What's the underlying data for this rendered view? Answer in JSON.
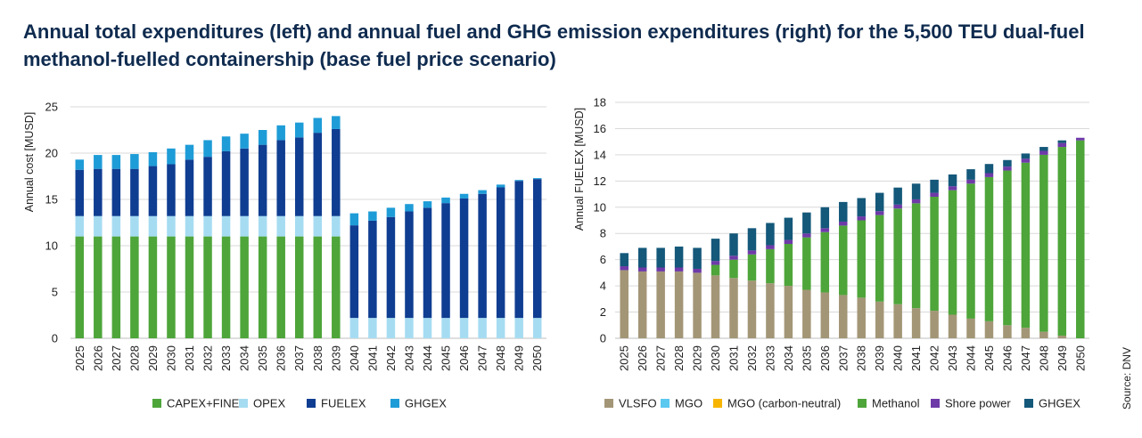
{
  "title": "Annual total expenditures (left) and annual fuel and GHG emission expenditures (right) for the 5,500 TEU dual-fuel methanol-fuelled containership (base fuel price scenario)",
  "source": "Source: DNV",
  "chart_data": [
    {
      "type": "bar",
      "stacked": true,
      "ylabel": "Annual cost [MUSD]",
      "ylim": [
        0,
        25
      ],
      "yticks": [
        0,
        5,
        10,
        15,
        20,
        25
      ],
      "grid": true,
      "legend_position": "bottom",
      "categories": [
        "2025",
        "2026",
        "2027",
        "2028",
        "2029",
        "2030",
        "2031",
        "2032",
        "2033",
        "2034",
        "2035",
        "2036",
        "2037",
        "2038",
        "2039",
        "2040",
        "2041",
        "2042",
        "2043",
        "2044",
        "2045",
        "2046",
        "2047",
        "2048",
        "2049",
        "2050"
      ],
      "series": [
        {
          "name": "CAPEX+FINEX",
          "color": "#4ea53a",
          "values": [
            11,
            11,
            11,
            11,
            11,
            11,
            11,
            11,
            11,
            11,
            11,
            11,
            11,
            11,
            11,
            0,
            0,
            0,
            0,
            0,
            0,
            0,
            0,
            0,
            0,
            0
          ]
        },
        {
          "name": "OPEX",
          "color": "#a6dcf2",
          "values": [
            2.2,
            2.2,
            2.2,
            2.2,
            2.2,
            2.2,
            2.2,
            2.2,
            2.2,
            2.2,
            2.2,
            2.2,
            2.2,
            2.2,
            2.2,
            2.2,
            2.2,
            2.2,
            2.2,
            2.2,
            2.2,
            2.2,
            2.2,
            2.2,
            2.2,
            2.2
          ]
        },
        {
          "name": "FUELEX",
          "color": "#0f3d91",
          "values": [
            5.0,
            5.1,
            5.1,
            5.1,
            5.4,
            5.6,
            6.1,
            6.4,
            7.0,
            7.3,
            7.7,
            8.2,
            8.5,
            9.0,
            9.4,
            10.0,
            10.5,
            10.9,
            11.5,
            11.9,
            12.4,
            12.9,
            13.4,
            14.1,
            14.8,
            15.0
          ]
        },
        {
          "name": "GHGEX",
          "color": "#1e9cd7",
          "values": [
            1.1,
            1.5,
            1.5,
            1.6,
            1.5,
            1.7,
            1.6,
            1.8,
            1.6,
            1.6,
            1.6,
            1.6,
            1.6,
            1.6,
            1.4,
            1.3,
            1.0,
            1.0,
            0.8,
            0.7,
            0.6,
            0.5,
            0.4,
            0.3,
            0.1,
            0.1
          ]
        }
      ]
    },
    {
      "type": "bar",
      "stacked": true,
      "ylabel": "Annual FUELEX [MUSD]",
      "ylim": [
        0,
        18
      ],
      "yticks": [
        0,
        2,
        4,
        6,
        8,
        10,
        12,
        14,
        16,
        18
      ],
      "grid": true,
      "legend_position": "bottom",
      "categories": [
        "2025",
        "2026",
        "2027",
        "2028",
        "2029",
        "2030",
        "2031",
        "2032",
        "2033",
        "2034",
        "2035",
        "2036",
        "2037",
        "2038",
        "2039",
        "2040",
        "2041",
        "2042",
        "2043",
        "2044",
        "2045",
        "2046",
        "2047",
        "2048",
        "2049",
        "2050"
      ],
      "series": [
        {
          "name": "VLSFO",
          "color": "#a39677",
          "values": [
            5.2,
            5.1,
            5.1,
            5.1,
            5.0,
            4.8,
            4.6,
            4.4,
            4.2,
            4.0,
            3.7,
            3.5,
            3.3,
            3.1,
            2.8,
            2.6,
            2.3,
            2.1,
            1.8,
            1.5,
            1.3,
            1.0,
            0.8,
            0.5,
            0.2,
            0.0
          ]
        },
        {
          "name": "MGO",
          "color": "#5bc8f0",
          "values": [
            0,
            0,
            0,
            0,
            0,
            0,
            0,
            0,
            0,
            0,
            0,
            0,
            0,
            0,
            0,
            0,
            0,
            0,
            0,
            0,
            0,
            0,
            0,
            0,
            0,
            0
          ]
        },
        {
          "name": "MGO (carbon-neutral)",
          "color": "#f7b500",
          "values": [
            0,
            0,
            0,
            0,
            0,
            0,
            0,
            0,
            0,
            0,
            0,
            0,
            0,
            0,
            0,
            0,
            0,
            0,
            0,
            0,
            0,
            0,
            0,
            0,
            0,
            0
          ]
        },
        {
          "name": "Methanol",
          "color": "#4ea53a",
          "values": [
            0,
            0,
            0,
            0,
            0,
            0.8,
            1.4,
            2.0,
            2.6,
            3.2,
            4.0,
            4.6,
            5.3,
            5.9,
            6.6,
            7.3,
            8.0,
            8.7,
            9.5,
            10.3,
            11.0,
            11.8,
            12.6,
            13.5,
            14.4,
            15.1
          ]
        },
        {
          "name": "Shore power",
          "color": "#6e3aa8",
          "values": [
            0.3,
            0.3,
            0.3,
            0.3,
            0.3,
            0.3,
            0.3,
            0.3,
            0.3,
            0.3,
            0.3,
            0.3,
            0.3,
            0.3,
            0.3,
            0.3,
            0.3,
            0.3,
            0.3,
            0.3,
            0.3,
            0.3,
            0.3,
            0.3,
            0.3,
            0.2
          ]
        },
        {
          "name": "GHGEX",
          "color": "#14587a",
          "values": [
            1.0,
            1.5,
            1.5,
            1.6,
            1.6,
            1.7,
            1.7,
            1.7,
            1.7,
            1.7,
            1.6,
            1.6,
            1.5,
            1.4,
            1.4,
            1.3,
            1.2,
            1.0,
            0.9,
            0.8,
            0.7,
            0.5,
            0.4,
            0.3,
            0.2,
            0.0
          ]
        }
      ]
    }
  ]
}
